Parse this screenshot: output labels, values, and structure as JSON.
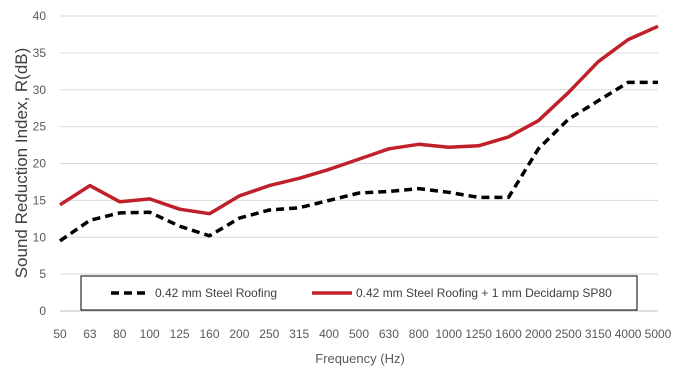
{
  "chart_data": {
    "type": "line",
    "xlabel": "Frequency (Hz)",
    "ylabel": "Sound Reduction Index, R(dB)",
    "ylim": [
      0,
      40
    ],
    "yticks": [
      "0",
      "5",
      "10",
      "15",
      "20",
      "25",
      "30",
      "35",
      "40"
    ],
    "categories": [
      "50",
      "63",
      "80",
      "100",
      "125",
      "160",
      "200",
      "250",
      "315",
      "400",
      "500",
      "630",
      "800",
      "1000",
      "1250",
      "1600",
      "2000",
      "2500",
      "3150",
      "4000",
      "5000"
    ],
    "grid": true,
    "legend_position": "bottom-inside",
    "series": [
      {
        "name": "0.42 mm Steel Roofing",
        "style": "dashed",
        "color": "#000000",
        "values": [
          9.5,
          12.3,
          13.3,
          13.4,
          11.5,
          10.2,
          12.6,
          13.7,
          14.0,
          15.0,
          16.0,
          16.2,
          16.6,
          16.1,
          15.4,
          15.4,
          22.0,
          26.0,
          28.5,
          31.0,
          31.0
        ]
      },
      {
        "name": "0.42 mm Steel Roofing + 1 mm Decidamp SP80",
        "style": "solid",
        "color": "#c0202a",
        "values": [
          14.4,
          17.0,
          14.8,
          15.2,
          13.8,
          13.2,
          15.6,
          17.0,
          18.0,
          19.2,
          20.6,
          22.0,
          22.6,
          22.2,
          22.4,
          23.6,
          25.8,
          29.6,
          33.8,
          36.8,
          38.6
        ]
      }
    ]
  }
}
